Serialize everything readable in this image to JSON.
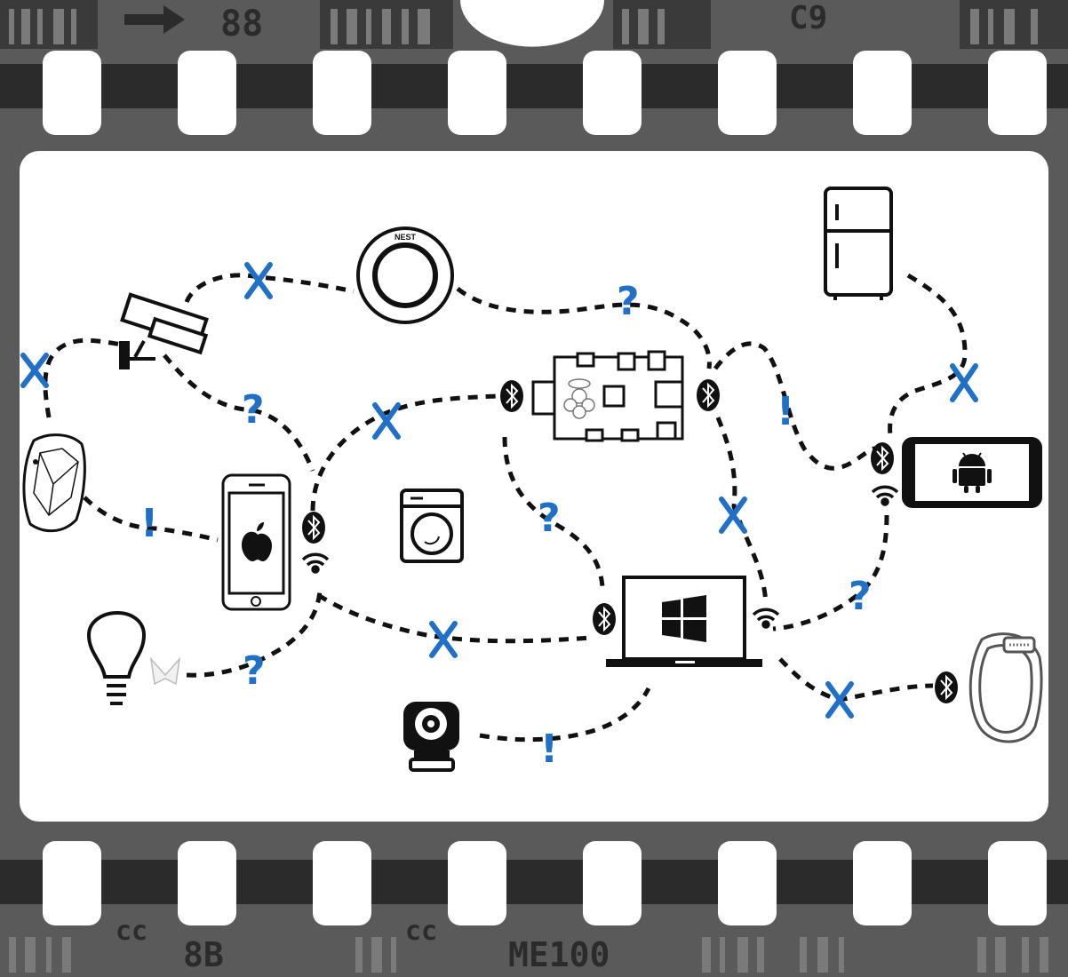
{
  "film": {
    "top_left_code": "88",
    "top_right_code": "C9",
    "bottom_code_1": "cc",
    "bottom_code_2": "8B",
    "bottom_code_3": "cc",
    "bottom_code_4": "ME100",
    "arrow_icon": "arrow-right"
  },
  "colors": {
    "film": "#5a5a5a",
    "film_dark": "#2b2b2b",
    "frame": "#ffffff",
    "line": "#111111",
    "mark": "#2070c8"
  },
  "devices": {
    "nest_label": "NEST"
  },
  "markers": {
    "question": "?",
    "exclaim": "!"
  }
}
